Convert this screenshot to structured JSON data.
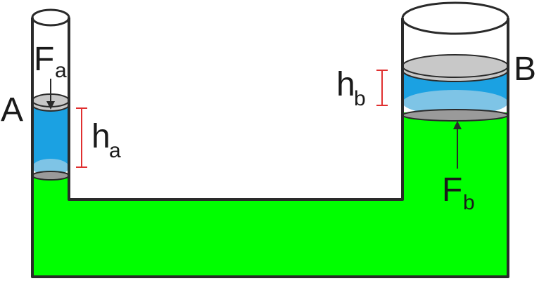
{
  "labels": {
    "container_a": "A",
    "container_b": "B",
    "force_a": "F",
    "force_a_sub": "a",
    "force_b": "F",
    "force_b_sub": "b",
    "height_a": "h",
    "height_a_sub": "a",
    "height_b": "h",
    "height_b_sub": "b"
  },
  "colors": {
    "fluid": "#00ff00",
    "water": "#1ba1e2",
    "water_light": "#7ec4e6",
    "piston": "#c8c8c8",
    "outline": "#2a2a2a",
    "dimension_marker": "#e03030"
  }
}
